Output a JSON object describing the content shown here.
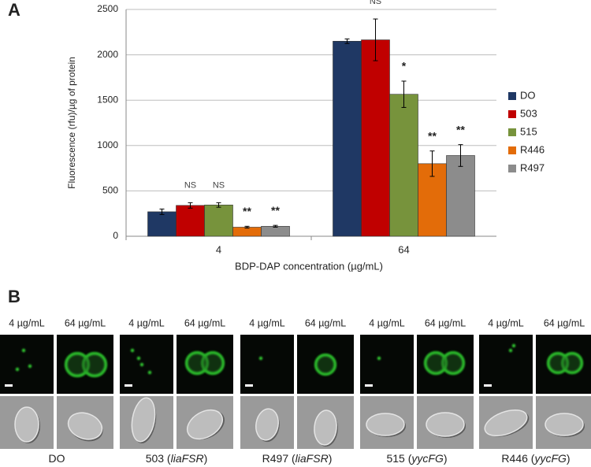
{
  "panel_labels": [
    "A",
    "B"
  ],
  "chart_data": {
    "type": "bar",
    "y_label": "Fluorescence (rfu)/µg of protein",
    "x_label": "BDP-DAP concentration (µg/mL)",
    "categories": [
      "4",
      "64"
    ],
    "series": [
      {
        "name": "DO",
        "color": "#1f3864",
        "values": [
          270,
          2150
        ],
        "errors": [
          30,
          25
        ],
        "labels": [
          null,
          null
        ]
      },
      {
        "name": "503",
        "color": "#c00000",
        "values": [
          340,
          2165
        ],
        "errors": [
          30,
          230
        ],
        "labels": [
          "NS",
          "NS"
        ]
      },
      {
        "name": "515",
        "color": "#77933c",
        "values": [
          345,
          1565
        ],
        "errors": [
          25,
          145
        ],
        "labels": [
          "NS",
          "*"
        ]
      },
      {
        "name": "R446",
        "color": "#e36c09",
        "values": [
          100,
          800
        ],
        "errors": [
          10,
          140
        ],
        "labels": [
          "**",
          "**"
        ]
      },
      {
        "name": "R497",
        "color": "#8c8c8c",
        "values": [
          110,
          890
        ],
        "errors": [
          10,
          120
        ],
        "labels": [
          "**",
          "**"
        ]
      }
    ],
    "ylim": [
      0,
      2500
    ],
    "yticks": [
      0,
      500,
      1000,
      1500,
      2000,
      2500
    ],
    "grid": true,
    "legend": "right"
  },
  "micrographs": {
    "column_labels": [
      "4 µg/mL",
      "64 µg/mL"
    ],
    "groups": [
      {
        "caption": [
          "DO"
        ]
      },
      {
        "caption": [
          "503 (",
          "liaFSR",
          ")"
        ]
      },
      {
        "caption": [
          "R497 (",
          "liaFSR",
          ")"
        ]
      },
      {
        "caption": [
          "515 (",
          "yycFG",
          ")"
        ]
      },
      {
        "caption": [
          "R446 (",
          "yycFG",
          ")"
        ]
      }
    ]
  }
}
